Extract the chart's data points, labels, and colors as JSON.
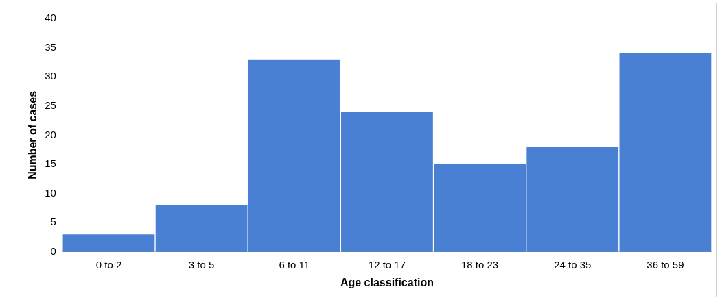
{
  "chart_data": {
    "type": "bar",
    "xlabel": "Age classification",
    "ylabel": "Number of cases",
    "categories": [
      "0 to 2",
      "3 to 5",
      "6 to 11",
      "12 to 17",
      "18 to 23",
      "24 to 35",
      "36 to 59"
    ],
    "values": [
      3,
      8,
      33,
      24,
      15,
      18,
      34
    ],
    "color": "#4a80d4",
    "ylim": [
      0,
      40
    ],
    "yticks": [
      0,
      5,
      10,
      15,
      20,
      25,
      30,
      35,
      40
    ],
    "grid": false,
    "legend": false
  }
}
